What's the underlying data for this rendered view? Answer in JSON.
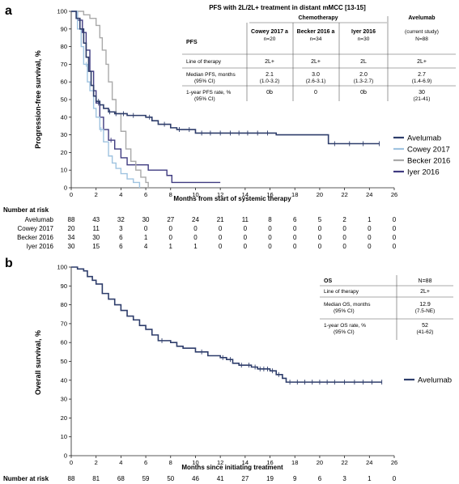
{
  "panel_a": {
    "label": "a",
    "table": {
      "title": "PFS with 2L/2L+ treatment in distant mMCC [13-15]",
      "group_header": "Chemotherapy",
      "row_header": "PFS",
      "columns": [
        {
          "name": "Cowey 2017 a",
          "n": "n=20"
        },
        {
          "name": "Becker 2016 a",
          "n": "n=34"
        },
        {
          "name": "Iyer 2016",
          "n": "n=30"
        },
        {
          "name": "Avelumab",
          "n2": "(current study)",
          "n": "N=88"
        }
      ],
      "rows": [
        {
          "label": "Line of therapy",
          "label2": "",
          "values": [
            "2L+",
            "2L+",
            "2L",
            "2L+"
          ],
          "values2": [
            "",
            "",
            "",
            ""
          ]
        },
        {
          "label": "Median PFS, months",
          "label2": "(95% CI)",
          "values": [
            "2.1",
            "3.0",
            "2.0",
            "2.7"
          ],
          "values2": [
            "(1.0-3.2)",
            "(2.6-3.1)",
            "(1.3-2.7)",
            "(1.4-6.9)"
          ]
        },
        {
          "label": "1-year PFS rate, %",
          "label2": "(95% CI)",
          "values": [
            "0b",
            "0",
            "0b",
            "30"
          ],
          "values2": [
            "",
            "",
            "",
            "(21-41)"
          ]
        }
      ]
    },
    "risk_header": "Number at risk",
    "risk_rows": [
      {
        "name": "Avelumab",
        "values": [
          "88",
          "43",
          "32",
          "30",
          "27",
          "24",
          "21",
          "11",
          "8",
          "6",
          "5",
          "2",
          "1",
          "0"
        ]
      },
      {
        "name": "Cowey 2017",
        "values": [
          "20",
          "11",
          "3",
          "0",
          "0",
          "0",
          "0",
          "0",
          "0",
          "0",
          "0",
          "0",
          "0",
          "0"
        ]
      },
      {
        "name": "Becker 2016",
        "values": [
          "34",
          "30",
          "6",
          "1",
          "0",
          "0",
          "0",
          "0",
          "0",
          "0",
          "0",
          "0",
          "0",
          "0"
        ]
      },
      {
        "name": "Iyer 2016",
        "values": [
          "30",
          "15",
          "6",
          "4",
          "1",
          "1",
          "0",
          "0",
          "0",
          "0",
          "0",
          "0",
          "0",
          "0"
        ]
      }
    ]
  },
  "panel_b": {
    "label": "b",
    "table": {
      "header_left": "OS",
      "header_right": "N=88",
      "rows": [
        {
          "label": "Line of therapy",
          "label2": "",
          "value": "2L+",
          "value2": ""
        },
        {
          "label": "Median OS, months",
          "label2": "(95% CI)",
          "value": "12.9",
          "value2": "(7.5-NE)"
        },
        {
          "label": "1-year OS rate, %",
          "label2": "(95% CI)",
          "value": "52",
          "value2": "(41-62)"
        }
      ]
    },
    "risk_header": "Number at risk",
    "risk_values": [
      "88",
      "81",
      "68",
      "59",
      "50",
      "46",
      "41",
      "27",
      "19",
      "9",
      "6",
      "3",
      "1",
      "0"
    ]
  },
  "colors": {
    "avelumab": "#2e3d6b",
    "cowey": "#9fc3e0",
    "becker": "#a9a9a9",
    "iyer": "#3f3b80"
  },
  "chart_data": [
    {
      "type": "line",
      "title": "",
      "xlabel": "Months from start of systemic therapy",
      "ylabel": "Progression-free survival, %",
      "xlim": [
        0,
        26
      ],
      "ylim": [
        0,
        100
      ],
      "x_ticks": [
        "0",
        "2",
        "4",
        "6",
        "8",
        "10",
        "12",
        "14",
        "16",
        "18",
        "20",
        "22",
        "24",
        "26"
      ],
      "y_ticks": [
        "0",
        "10",
        "20",
        "30",
        "40",
        "50",
        "60",
        "70",
        "80",
        "90",
        "100"
      ],
      "legend_position": "right",
      "series": [
        {
          "name": "Avelumab",
          "color_key": "avelumab",
          "points": [
            [
              0,
              100
            ],
            [
              0.4,
              96
            ],
            [
              0.7,
              90
            ],
            [
              1.0,
              82
            ],
            [
              1.2,
              74
            ],
            [
              1.4,
              66
            ],
            [
              1.6,
              58
            ],
            [
              1.8,
              52
            ],
            [
              2.0,
              49
            ],
            [
              2.3,
              47
            ],
            [
              2.6,
              45
            ],
            [
              3.0,
              43
            ],
            [
              3.5,
              42
            ],
            [
              4.5,
              41
            ],
            [
              6.0,
              40
            ],
            [
              6.5,
              38
            ],
            [
              7.0,
              36
            ],
            [
              8.0,
              34
            ],
            [
              8.5,
              33
            ],
            [
              10.0,
              31
            ],
            [
              13.0,
              31
            ],
            [
              16.5,
              31
            ],
            [
              16.5,
              30
            ],
            [
              20.7,
              30
            ],
            [
              20.7,
              25
            ],
            [
              24.8,
              25
            ]
          ],
          "censor_x": [
            2.2,
            3.1,
            3.6,
            4.2,
            5.0,
            6.3,
            7.5,
            8.7,
            9.5,
            10.5,
            11.2,
            12.0,
            12.8,
            13.5,
            14.2,
            15.0,
            15.8,
            21.2,
            22.4,
            23.5,
            24.8
          ]
        },
        {
          "name": "Cowey 2017",
          "color_key": "cowey",
          "points": [
            [
              0,
              100
            ],
            [
              0.5,
              90
            ],
            [
              0.8,
              80
            ],
            [
              1.0,
              70
            ],
            [
              1.3,
              60
            ],
            [
              1.5,
              55
            ],
            [
              1.8,
              45
            ],
            [
              2.0,
              40
            ],
            [
              2.3,
              33
            ],
            [
              2.6,
              26
            ],
            [
              3.0,
              18
            ],
            [
              3.3,
              14
            ],
            [
              3.6,
              11
            ],
            [
              4.0,
              8
            ],
            [
              4.5,
              5
            ],
            [
              5.0,
              3
            ],
            [
              5.5,
              0
            ]
          ],
          "censor_x": [
            1.2,
            2.4
          ]
        },
        {
          "name": "Becker 2016",
          "color_key": "becker",
          "points": [
            [
              0,
              100
            ],
            [
              1.0,
              98
            ],
            [
              1.5,
              96
            ],
            [
              2.0,
              92
            ],
            [
              2.3,
              85
            ],
            [
              2.5,
              78
            ],
            [
              2.8,
              70
            ],
            [
              3.0,
              60
            ],
            [
              3.3,
              50
            ],
            [
              3.6,
              42
            ],
            [
              4.0,
              32
            ],
            [
              4.4,
              22
            ],
            [
              4.8,
              15
            ],
            [
              5.2,
              10
            ],
            [
              5.6,
              6
            ],
            [
              6.0,
              3
            ],
            [
              6.2,
              0
            ]
          ],
          "censor_x": []
        },
        {
          "name": "Iyer 2016",
          "color_key": "iyer",
          "points": [
            [
              0,
              100
            ],
            [
              0.5,
              95
            ],
            [
              0.9,
              88
            ],
            [
              1.2,
              78
            ],
            [
              1.5,
              66
            ],
            [
              1.8,
              55
            ],
            [
              2.0,
              48
            ],
            [
              2.3,
              40
            ],
            [
              2.6,
              33
            ],
            [
              3.0,
              27
            ],
            [
              3.5,
              22
            ],
            [
              4.0,
              17
            ],
            [
              4.5,
              13
            ],
            [
              5.0,
              13
            ],
            [
              6.0,
              13
            ],
            [
              6.2,
              10
            ],
            [
              7.5,
              10
            ],
            [
              7.7,
              7
            ],
            [
              8.0,
              7
            ],
            [
              8.1,
              3
            ],
            [
              12.0,
              3
            ]
          ],
          "censor_x": [
            2.2,
            3.2
          ]
        }
      ]
    },
    {
      "type": "line",
      "title": "",
      "xlabel": "Months since initiating treatment",
      "ylabel": "Overall survival, %",
      "xlim": [
        0,
        26
      ],
      "ylim": [
        0,
        100
      ],
      "x_ticks": [
        "0",
        "2",
        "4",
        "6",
        "8",
        "10",
        "12",
        "14",
        "16",
        "18",
        "20",
        "22",
        "24",
        "26"
      ],
      "y_ticks": [
        "0",
        "10",
        "20",
        "30",
        "40",
        "50",
        "60",
        "70",
        "80",
        "90",
        "100"
      ],
      "legend_position": "right",
      "series": [
        {
          "name": "Avelumab",
          "color_key": "avelumab",
          "points": [
            [
              0,
              100
            ],
            [
              0.5,
              99
            ],
            [
              1.0,
              98
            ],
            [
              1.3,
              95
            ],
            [
              1.7,
              93
            ],
            [
              2.0,
              91
            ],
            [
              2.5,
              86
            ],
            [
              3.0,
              83
            ],
            [
              3.5,
              80
            ],
            [
              4.0,
              77
            ],
            [
              4.5,
              74
            ],
            [
              5.0,
              72
            ],
            [
              5.5,
              69
            ],
            [
              6.0,
              67
            ],
            [
              6.5,
              64
            ],
            [
              7.0,
              61
            ],
            [
              8.0,
              60
            ],
            [
              8.5,
              58
            ],
            [
              9.0,
              57
            ],
            [
              10.0,
              55
            ],
            [
              11.0,
              53
            ],
            [
              12.0,
              52
            ],
            [
              12.5,
              51
            ],
            [
              13.0,
              49
            ],
            [
              13.5,
              48
            ],
            [
              14.5,
              47
            ],
            [
              15.0,
              46
            ],
            [
              16.0,
              45
            ],
            [
              16.5,
              43
            ],
            [
              17.0,
              41
            ],
            [
              17.3,
              39
            ],
            [
              18.0,
              39
            ],
            [
              25.0,
              39
            ]
          ],
          "censor_x": [
            7.3,
            10.5,
            12.2,
            12.8,
            13.7,
            14.3,
            14.8,
            15.2,
            15.5,
            15.8,
            16.2,
            16.7,
            17.6,
            18.2,
            18.8,
            19.4,
            20.0,
            20.6,
            21.2,
            22.0,
            22.8,
            23.5,
            24.2,
            25.0
          ]
        }
      ]
    }
  ]
}
